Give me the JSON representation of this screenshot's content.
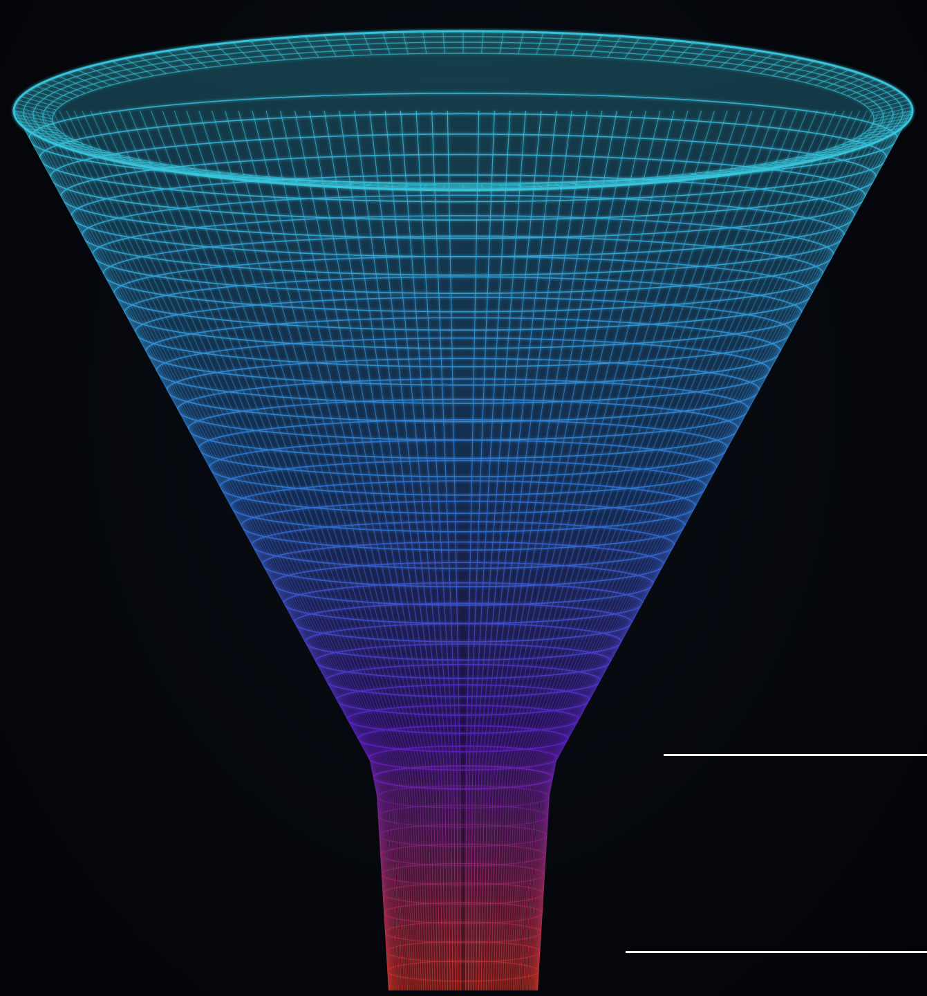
{
  "scene": {
    "subject": "funnel-wireframe",
    "colors": {
      "background": "#05070c",
      "top": "#39c6dc",
      "middle": "#2f76d9",
      "lower": "#5a1fc2",
      "bottom": "#e0372a",
      "marker": "#ffffff"
    }
  }
}
